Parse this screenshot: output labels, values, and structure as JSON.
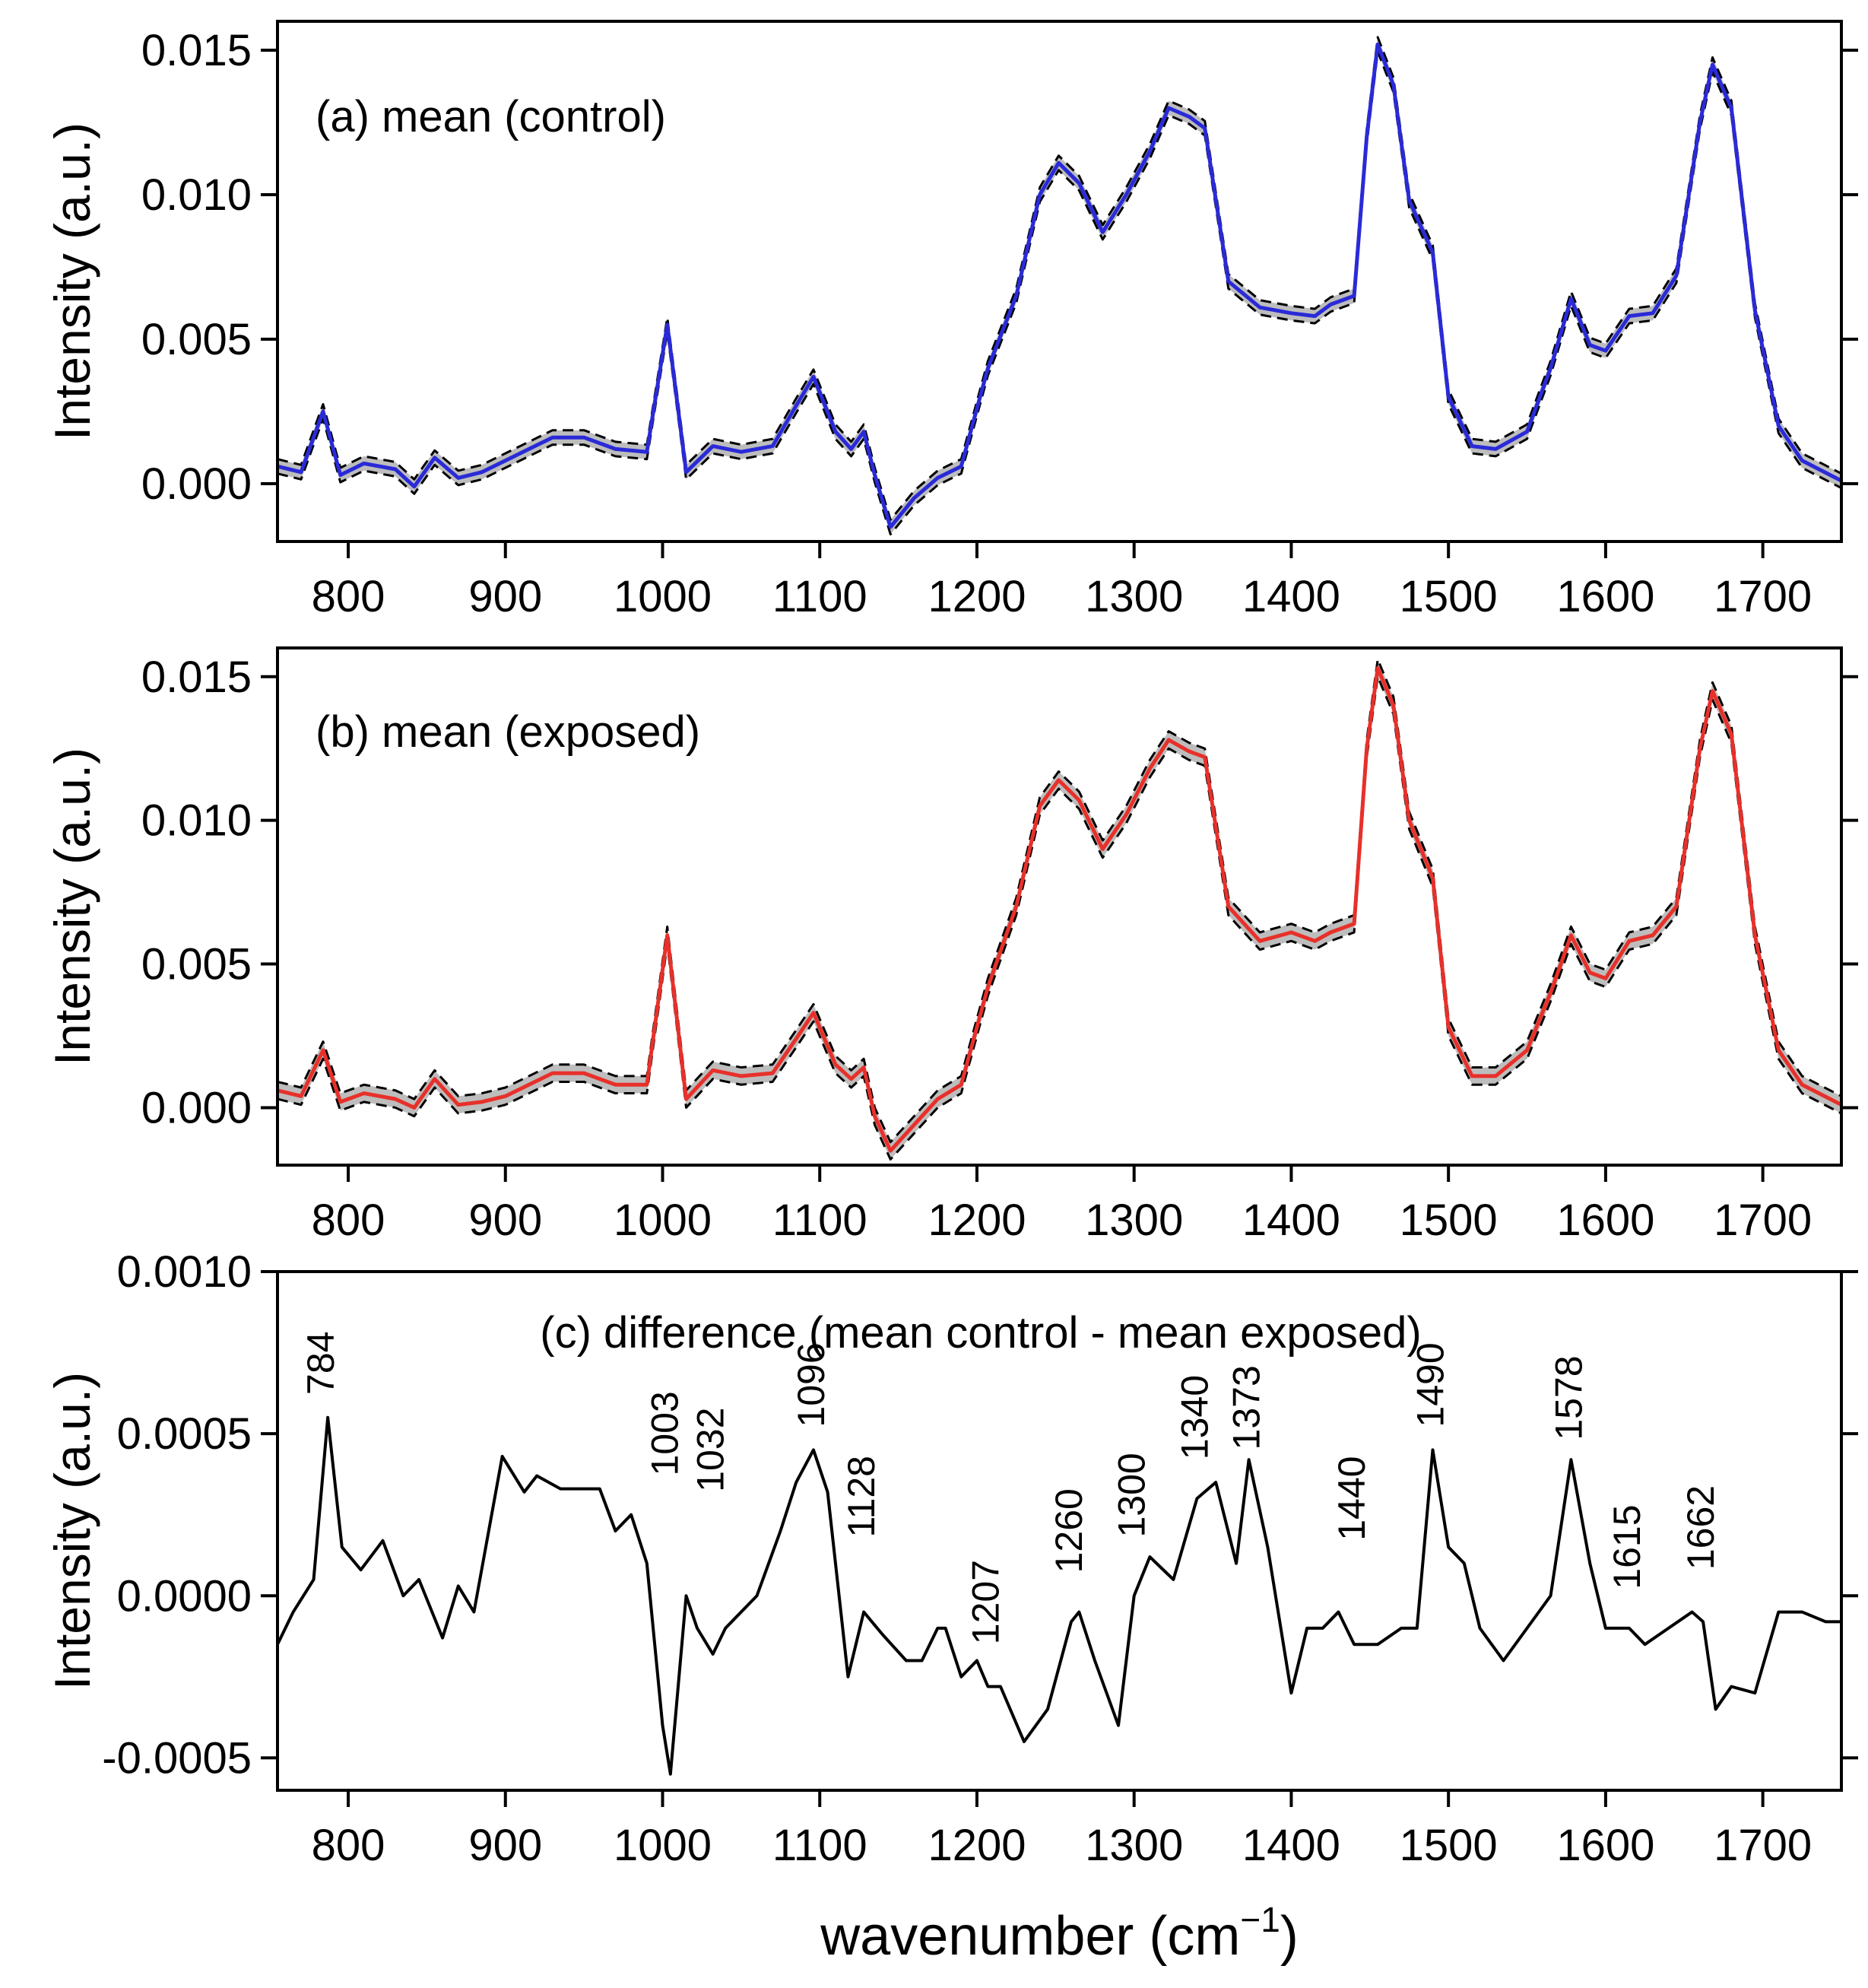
{
  "chart_data": [
    {
      "type": "line",
      "panel": "a",
      "title": "(a) mean (control)",
      "ylabel": "Intensity (a.u.)",
      "xlabel": "",
      "xlim": [
        755,
        1750
      ],
      "ylim": [
        -0.002,
        0.016
      ],
      "xticks": [
        800,
        900,
        1000,
        1100,
        1200,
        1300,
        1400,
        1500,
        1600,
        1700
      ],
      "xtick_labels": [
        "800",
        "900",
        "1000",
        "1100",
        "1200",
        "1300",
        "1400",
        "1500",
        "1600",
        "1700"
      ],
      "yticks": [
        0,
        0.005,
        0.01,
        0.015
      ],
      "ytick_labels": [
        "0.000",
        "0.005",
        "0.010",
        "0.015"
      ],
      "band": "mean ± standard deviation (grey, dashed black bounds)",
      "series": [
        {
          "name": "mean (control)",
          "color": "#2a2ad8",
          "band_halfwidth": 0.00025,
          "x": [
            755,
            770,
            784,
            795,
            810,
            830,
            842,
            855,
            870,
            885,
            900,
            915,
            930,
            950,
            970,
            990,
            1003,
            1015,
            1032,
            1050,
            1070,
            1085,
            1096,
            1110,
            1120,
            1128,
            1135,
            1145,
            1160,
            1175,
            1190,
            1207,
            1225,
            1240,
            1252,
            1265,
            1280,
            1295,
            1310,
            1322,
            1335,
            1345,
            1360,
            1380,
            1400,
            1415,
            1425,
            1440,
            1448,
            1455,
            1465,
            1475,
            1490,
            1500,
            1515,
            1530,
            1550,
            1565,
            1578,
            1590,
            1600,
            1615,
            1630,
            1645,
            1660,
            1668,
            1680,
            1695,
            1710,
            1725,
            1750
          ],
          "values": [
            0.0006,
            0.0004,
            0.0025,
            0.0003,
            0.0007,
            0.0005,
            -0.0001,
            0.0009,
            0.0002,
            0.0004,
            0.0008,
            0.0012,
            0.0016,
            0.0016,
            0.0012,
            0.0011,
            0.0055,
            0.0004,
            0.0013,
            0.0011,
            0.0013,
            0.0027,
            0.0037,
            0.0018,
            0.0012,
            0.0018,
            0.0003,
            -0.0015,
            -0.0005,
            0.0002,
            0.0006,
            0.004,
            0.0065,
            0.01,
            0.0111,
            0.0104,
            0.0087,
            0.01,
            0.0115,
            0.013,
            0.0127,
            0.0123,
            0.007,
            0.0061,
            0.0059,
            0.0058,
            0.0062,
            0.0065,
            0.012,
            0.0152,
            0.0138,
            0.0098,
            0.008,
            0.003,
            0.0013,
            0.0012,
            0.0018,
            0.004,
            0.0064,
            0.0048,
            0.0046,
            0.0058,
            0.0059,
            0.0072,
            0.0125,
            0.0145,
            0.013,
            0.006,
            0.002,
            0.0008,
            0.0001
          ]
        }
      ]
    },
    {
      "type": "line",
      "panel": "b",
      "title": "(b) mean (exposed)",
      "ylabel": "Intensity (a.u.)",
      "xlabel": "",
      "xlim": [
        755,
        1750
      ],
      "ylim": [
        -0.002,
        0.016
      ],
      "xticks": [
        800,
        900,
        1000,
        1100,
        1200,
        1300,
        1400,
        1500,
        1600,
        1700
      ],
      "xtick_labels": [
        "800",
        "900",
        "1000",
        "1100",
        "1200",
        "1300",
        "1400",
        "1500",
        "1600",
        "1700"
      ],
      "yticks": [
        0,
        0.005,
        0.01,
        0.015
      ],
      "ytick_labels": [
        "0.000",
        "0.005",
        "0.010",
        "0.015"
      ],
      "band": "mean ± standard deviation (grey, dashed black bounds)",
      "series": [
        {
          "name": "mean (exposed)",
          "color": "#e8302a",
          "band_halfwidth": 0.0003,
          "x": [
            755,
            770,
            784,
            795,
            810,
            830,
            842,
            855,
            870,
            885,
            900,
            915,
            930,
            950,
            970,
            990,
            1003,
            1015,
            1032,
            1050,
            1070,
            1085,
            1096,
            1110,
            1120,
            1128,
            1135,
            1145,
            1160,
            1175,
            1190,
            1207,
            1225,
            1240,
            1252,
            1265,
            1280,
            1295,
            1310,
            1322,
            1335,
            1345,
            1360,
            1380,
            1400,
            1415,
            1425,
            1440,
            1448,
            1455,
            1465,
            1475,
            1490,
            1500,
            1515,
            1530,
            1550,
            1565,
            1578,
            1590,
            1600,
            1615,
            1630,
            1645,
            1660,
            1668,
            1680,
            1695,
            1710,
            1725,
            1750
          ],
          "values": [
            0.0006,
            0.0004,
            0.002,
            0.0002,
            0.0005,
            0.0003,
            0.0,
            0.001,
            0.0001,
            0.0002,
            0.0004,
            0.0008,
            0.0012,
            0.0012,
            0.0008,
            0.0008,
            0.006,
            0.0003,
            0.0013,
            0.0011,
            0.0012,
            0.0024,
            0.0033,
            0.0015,
            0.001,
            0.0014,
            -0.0003,
            -0.0015,
            -0.0006,
            0.0003,
            0.0008,
            0.0042,
            0.007,
            0.0105,
            0.0114,
            0.0107,
            0.009,
            0.0102,
            0.0118,
            0.0128,
            0.0124,
            0.0122,
            0.007,
            0.0058,
            0.0061,
            0.0058,
            0.0061,
            0.0064,
            0.0125,
            0.0153,
            0.014,
            0.01,
            0.008,
            0.0028,
            0.0011,
            0.0011,
            0.002,
            0.004,
            0.006,
            0.0047,
            0.0045,
            0.0058,
            0.006,
            0.007,
            0.0125,
            0.0145,
            0.013,
            0.006,
            0.002,
            0.0008,
            0.0001
          ]
        }
      ]
    },
    {
      "type": "line",
      "panel": "c",
      "title": "(c) difference (mean control - mean exposed)",
      "ylabel": "Intensity (a.u.)",
      "xlabel_main": "wavenumber (cm",
      "xlabel_sup": "−1",
      "xlabel_close": ")",
      "xlim": [
        755,
        1750
      ],
      "ylim": [
        -0.0006,
        0.001
      ],
      "xticks": [
        800,
        900,
        1000,
        1100,
        1200,
        1300,
        1400,
        1500,
        1600,
        1700
      ],
      "xtick_labels": [
        "800",
        "900",
        "1000",
        "1100",
        "1200",
        "1300",
        "1400",
        "1500",
        "1600",
        "1700"
      ],
      "yticks": [
        -0.0005,
        0,
        0.0005,
        0.001
      ],
      "ytick_labels": [
        "-0.0005",
        "0.0000",
        "0.0005",
        "0.0010"
      ],
      "series": [
        {
          "name": "difference",
          "color": "#000000",
          "x": [
            755,
            765,
            778,
            787,
            796,
            808,
            822,
            835,
            845,
            860,
            870,
            880,
            898,
            912,
            920,
            935,
            960,
            970,
            980,
            990,
            1000,
            1005,
            1015,
            1022,
            1032,
            1040,
            1050,
            1060,
            1075,
            1085,
            1096,
            1105,
            1118,
            1128,
            1140,
            1155,
            1165,
            1175,
            1180,
            1190,
            1200,
            1207,
            1215,
            1230,
            1245,
            1260,
            1265,
            1275,
            1290,
            1300,
            1310,
            1325,
            1340,
            1352,
            1365,
            1373,
            1385,
            1400,
            1410,
            1420,
            1430,
            1440,
            1455,
            1470,
            1480,
            1490,
            1500,
            1510,
            1520,
            1535,
            1550,
            1565,
            1578,
            1590,
            1600,
            1615,
            1625,
            1640,
            1655,
            1662,
            1670,
            1680,
            1695,
            1710,
            1725,
            1740,
            1750
          ],
          "values": [
            -0.00015,
            -5e-05,
            5e-05,
            0.00055,
            0.00015,
            8e-05,
            0.00017,
            0.0,
            5e-05,
            -0.00013,
            3e-05,
            -5e-05,
            0.00043,
            0.00032,
            0.00037,
            0.00033,
            0.00033,
            0.0002,
            0.00025,
            0.0001,
            -0.0004,
            -0.00055,
            0.0,
            -0.0001,
            -0.00018,
            -0.0001,
            -5e-05,
            0.0,
            0.0002,
            0.00035,
            0.00045,
            0.00032,
            -0.00025,
            -5e-05,
            -0.00012,
            -0.0002,
            -0.0002,
            -0.0001,
            -0.0001,
            -0.00025,
            -0.0002,
            -0.00028,
            -0.00028,
            -0.00045,
            -0.00035,
            -8e-05,
            -5e-05,
            -0.0002,
            -0.0004,
            0.0,
            0.00012,
            5e-05,
            0.0003,
            0.00035,
            0.0001,
            0.00042,
            0.00015,
            -0.0003,
            -0.0001,
            -0.0001,
            -5e-05,
            -0.00015,
            -0.00015,
            -0.0001,
            -0.0001,
            0.00045,
            0.00015,
            0.0001,
            -0.0001,
            -0.0002,
            -0.0001,
            0.0,
            0.00042,
            0.0001,
            -0.0001,
            -0.0001,
            -0.00015,
            -0.0001,
            -5e-05,
            -8e-05,
            -0.00035,
            -0.00028,
            -0.0003,
            -5e-05,
            -5e-05,
            -8e-05,
            -8e-05
          ]
        }
      ],
      "annotations": [
        {
          "text": "784",
          "x": 784,
          "y": 0.00062
        },
        {
          "text": "1003",
          "x": 1003,
          "y": 0.00037
        },
        {
          "text": "1032",
          "x": 1032,
          "y": 0.00032
        },
        {
          "text": "1096",
          "x": 1096,
          "y": 0.00052
        },
        {
          "text": "1128",
          "x": 1128,
          "y": 0.00018
        },
        {
          "text": "1207",
          "x": 1207,
          "y": -0.00015
        },
        {
          "text": "1260",
          "x": 1260,
          "y": 7e-05
        },
        {
          "text": "1300",
          "x": 1300,
          "y": 0.00018
        },
        {
          "text": "1340",
          "x": 1340,
          "y": 0.00042
        },
        {
          "text": "1373",
          "x": 1373,
          "y": 0.00045
        },
        {
          "text": "1440",
          "x": 1440,
          "y": 0.00017
        },
        {
          "text": "1490",
          "x": 1490,
          "y": 0.00052
        },
        {
          "text": "1578",
          "x": 1578,
          "y": 0.00048
        },
        {
          "text": "1615",
          "x": 1615,
          "y": 2e-05
        },
        {
          "text": "1662",
          "x": 1662,
          "y": 8e-05
        }
      ]
    }
  ]
}
